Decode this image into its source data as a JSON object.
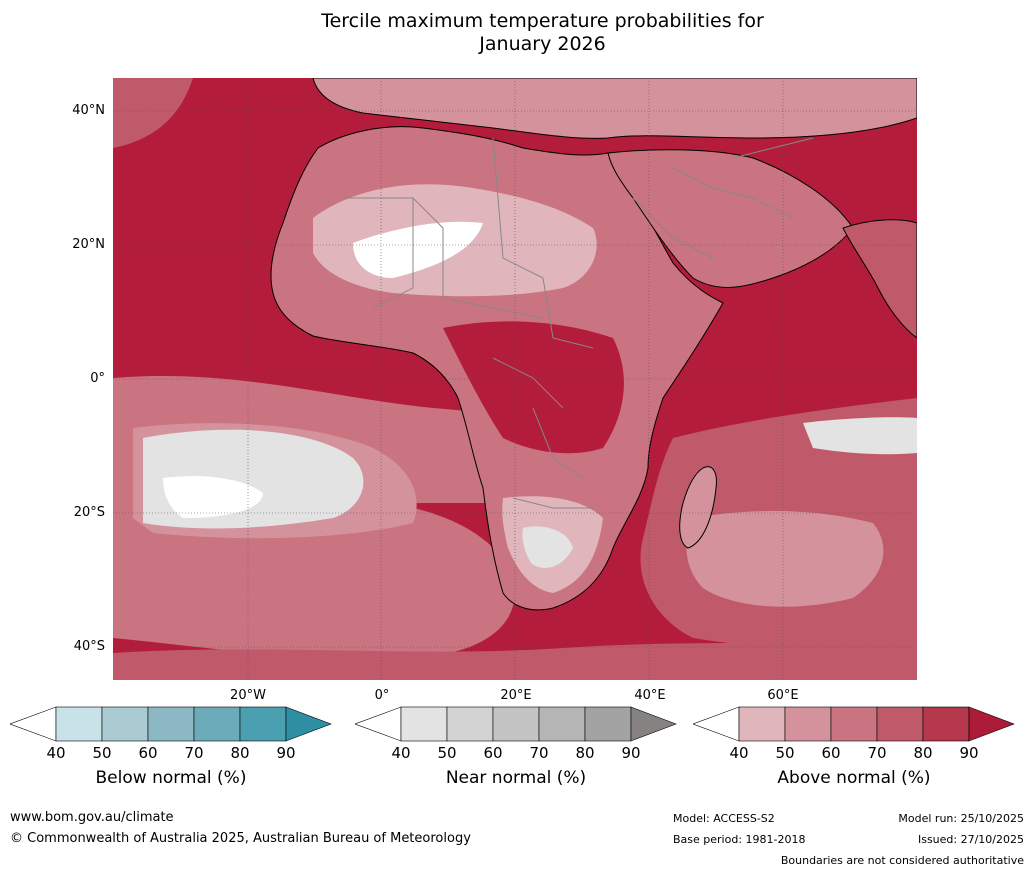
{
  "title_line1": "Tercile maximum temperature probabilities for",
  "title_line2": "January 2026",
  "map": {
    "lat_labels": [
      "40°N",
      "20°N",
      "0°",
      "20°S",
      "40°S"
    ],
    "lon_labels": [
      "20°W",
      "0°",
      "20°E",
      "40°E",
      "60°E"
    ],
    "ocean_color": "#b31c3a",
    "coast_color": "#000000",
    "border_color": "#888888"
  },
  "colorbars": [
    {
      "label": "Below normal (%)",
      "ticks": [
        "40",
        "50",
        "60",
        "70",
        "80",
        "90"
      ],
      "colors": [
        "#ffffff",
        "#c9e2e8",
        "#a9cbd1",
        "#8bb8c3",
        "#6babba",
        "#4a9fb0",
        "#2e8fa3"
      ]
    },
    {
      "label": "Near normal (%)",
      "ticks": [
        "40",
        "50",
        "60",
        "70",
        "80",
        "90"
      ],
      "colors": [
        "#ffffff",
        "#e3e3e3",
        "#d3d3d3",
        "#c4c4c4",
        "#b5b5b5",
        "#a4a3a3",
        "#868282"
      ]
    },
    {
      "label": "Above normal (%)",
      "ticks": [
        "40",
        "50",
        "60",
        "70",
        "80",
        "90"
      ],
      "colors": [
        "#ffffff",
        "#e0b5bb",
        "#d4939c",
        "#c97480",
        "#c05a6a",
        "#b5384d",
        "#ac1c38"
      ]
    }
  ],
  "footer": {
    "website": "www.bom.gov.au/climate",
    "copyright": "© Commonwealth of Australia 2025, Australian Bureau of Meteorology",
    "model": "Model: ACCESS-S2",
    "base_period": "Base period: 1981-2018",
    "model_run": "Model run: 25/10/2025",
    "issued": "Issued: 27/10/2025",
    "disclaimer": "Boundaries are not considered authoritative"
  }
}
